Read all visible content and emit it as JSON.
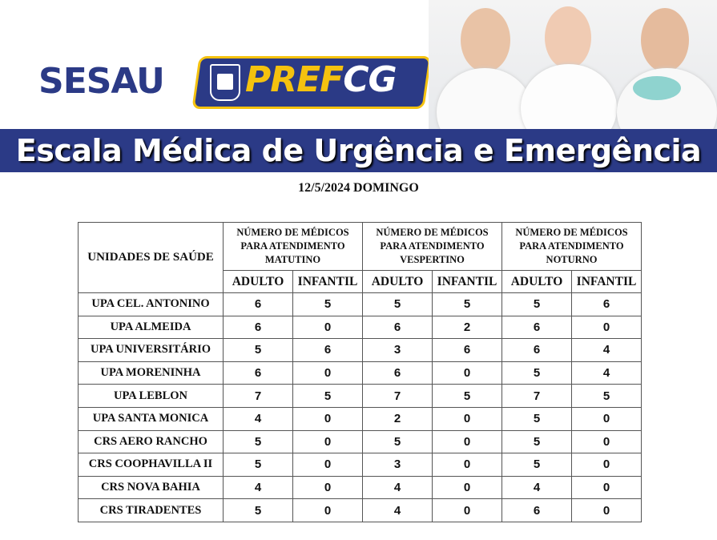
{
  "header": {
    "logo_sesau": "SESAU",
    "logo_pref_part1": "PREF",
    "logo_pref_part2": "CG",
    "title": "Escala Médica de Urgência e Emergência",
    "date": "12/5/2024  DOMINGO",
    "colors": {
      "brand_blue": "#2b3a86",
      "brand_yellow": "#f5c20f"
    }
  },
  "table": {
    "unit_header": "UNIDADES DE SAÚDE",
    "groups": [
      "NÚMERO DE MÉDICOS PARA ATENDIMENTO MATUTINO",
      "NÚMERO DE MÉDICOS PARA ATENDIMENTO VESPERTINO",
      "NÚMERO DE MÉDICOS PARA ATENDIMENTO NOTURNO"
    ],
    "subheaders": [
      "ADULTO",
      "INFANTIL",
      "ADULTO",
      "INFANTIL",
      "ADULTO",
      "INFANTIL"
    ],
    "rows": [
      {
        "unit": "UPA CEL. ANTONINO",
        "values": [
          "6",
          "5",
          "5",
          "5",
          "5",
          "6"
        ]
      },
      {
        "unit": "UPA ALMEIDA",
        "values": [
          "6",
          "0",
          "6",
          "2",
          "6",
          "0"
        ]
      },
      {
        "unit": "UPA UNIVERSITÁRIO",
        "values": [
          "5",
          "6",
          "3",
          "6",
          "6",
          "4"
        ]
      },
      {
        "unit": "UPA MORENINHA",
        "values": [
          "6",
          "0",
          "6",
          "0",
          "5",
          "4"
        ]
      },
      {
        "unit": "UPA LEBLON",
        "values": [
          "7",
          "5",
          "7",
          "5",
          "7",
          "5"
        ]
      },
      {
        "unit": "UPA SANTA MONICA",
        "values": [
          "4",
          "0",
          "2",
          "0",
          "5",
          "0"
        ]
      },
      {
        "unit": "CRS AERO RANCHO",
        "values": [
          "5",
          "0",
          "5",
          "0",
          "5",
          "0"
        ]
      },
      {
        "unit": "CRS COOPHAVILLA II",
        "values": [
          "5",
          "0",
          "3",
          "0",
          "5",
          "0"
        ]
      },
      {
        "unit": "CRS NOVA BAHIA",
        "values": [
          "4",
          "0",
          "4",
          "0",
          "4",
          "0"
        ]
      },
      {
        "unit": "CRS TIRADENTES",
        "values": [
          "5",
          "0",
          "4",
          "0",
          "6",
          "0"
        ]
      }
    ]
  }
}
